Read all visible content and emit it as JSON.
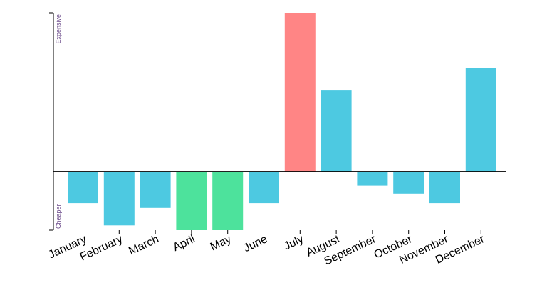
{
  "chart_data": {
    "type": "bar",
    "title": "",
    "xlabel": "",
    "ylabel": "",
    "y_high_label": "Expensive",
    "y_low_label": "Cheaper",
    "categories": [
      "January",
      "February",
      "March",
      "April",
      "May",
      "June",
      "July",
      "August",
      "September",
      "October",
      "November",
      "December"
    ],
    "values": [
      -0.2,
      -0.34,
      -0.23,
      -0.37,
      -0.37,
      -0.2,
      1.0,
      0.51,
      -0.09,
      -0.14,
      -0.2,
      0.65
    ],
    "ylim": [
      -0.37,
      1.0
    ],
    "grid": false,
    "legend": "none",
    "colors": {
      "default": "#4dc9e1",
      "highest": "#ff8585",
      "lowest": "#4de29c",
      "axis": "#000000"
    }
  }
}
